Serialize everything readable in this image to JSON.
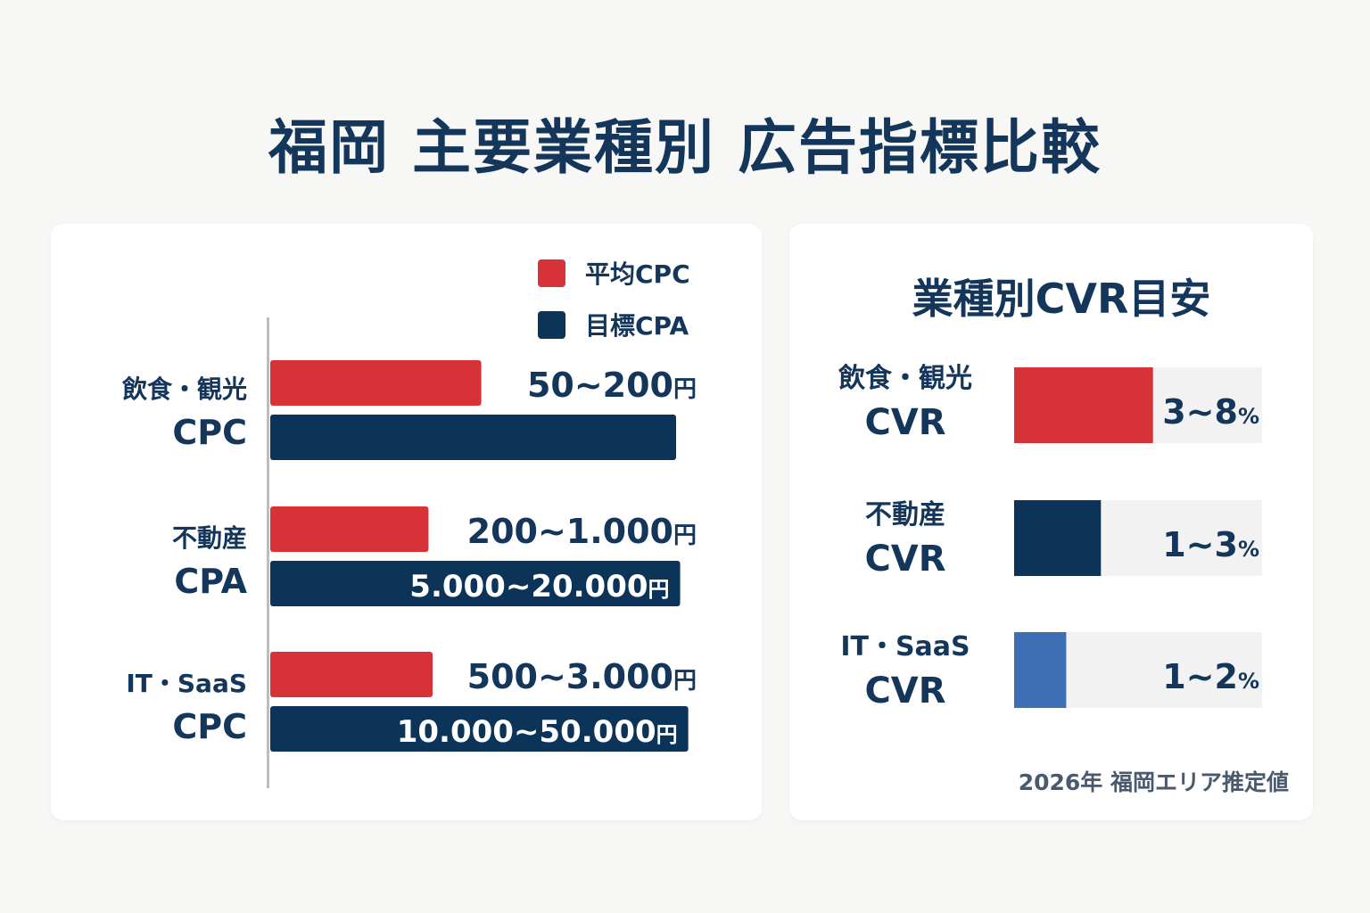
{
  "title": "福岡 主要業種別 広告指標比較",
  "colors": {
    "cpc": "#d63238",
    "cpa": "#0b3458",
    "it_cvr": "#3d6db3",
    "track": "#f2f2f2",
    "axis": "#bdbdbd",
    "navy_text": "#14365a"
  },
  "legend": {
    "cpc": "平均CPC",
    "cpa": "目標CPA"
  },
  "left": {
    "categories": [
      {
        "name": "飲食・観光",
        "metric": "CPC"
      },
      {
        "name": "不動産",
        "metric": "CPA"
      },
      {
        "name": "IT・SaaS",
        "metric": "CPC"
      }
    ]
  },
  "right": {
    "title": "業種別CVR目安",
    "items": [
      {
        "name": "飲食・観光",
        "metric": "CVR"
      },
      {
        "name": "不動産",
        "metric": "CVR"
      },
      {
        "name": "IT・SaaS",
        "metric": "CVR"
      }
    ],
    "footnote": "2026年 福岡エリア推定値"
  },
  "chart_data": [
    {
      "type": "bar",
      "orientation": "horizontal",
      "categories": [
        "飲食・観光",
        "不動産",
        "IT・SaaS"
      ],
      "series": [
        {
          "name": "平均CPC",
          "values": [
            0.52,
            0.39,
            0.4
          ],
          "labels": [
            "50~200円",
            "200~1.000円",
            "500~3.000円"
          ]
        },
        {
          "name": "目標CPA",
          "values": [
            1.0,
            1.01,
            1.03
          ],
          "labels": [
            "",
            "5.000~20.000円",
            "10.000~50.000円"
          ]
        }
      ],
      "legend": "top-right",
      "grid": false
    },
    {
      "type": "bar",
      "orientation": "horizontal",
      "title": "業種別CVR目安",
      "categories": [
        "飲食・観光",
        "不動産",
        "IT・SaaS"
      ],
      "series": [
        {
          "name": "CVR",
          "values": [
            0.56,
            0.35,
            0.21
          ],
          "labels": [
            "3~8%",
            "1~3%",
            "1~2%"
          ]
        }
      ],
      "grid": false
    }
  ]
}
